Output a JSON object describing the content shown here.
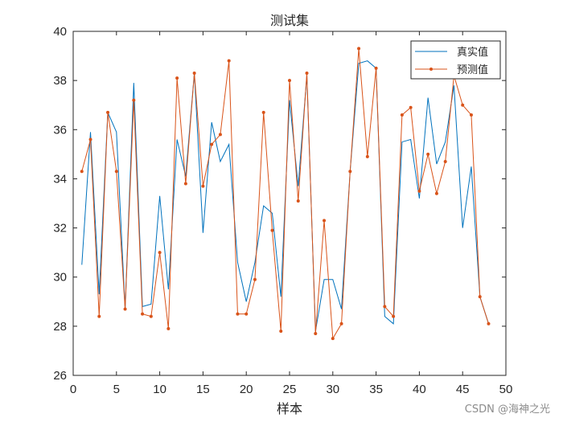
{
  "chart_data": {
    "type": "line",
    "title": "测试集",
    "xlabel": "样本",
    "ylabel": "",
    "xlim": [
      0,
      50
    ],
    "ylim": [
      26,
      40
    ],
    "xticks": [
      0,
      5,
      10,
      15,
      20,
      25,
      30,
      35,
      40,
      45,
      50
    ],
    "yticks": [
      26,
      28,
      30,
      32,
      34,
      36,
      38,
      40
    ],
    "grid": false,
    "legend_position": "top-right",
    "x": [
      1,
      2,
      3,
      4,
      5,
      6,
      7,
      8,
      9,
      10,
      11,
      12,
      13,
      14,
      15,
      16,
      17,
      18,
      19,
      20,
      21,
      22,
      23,
      24,
      25,
      26,
      27,
      28,
      29,
      30,
      31,
      32,
      33,
      34,
      35,
      36,
      37,
      38,
      39,
      40,
      41,
      42,
      43,
      44,
      45,
      46,
      47,
      48
    ],
    "series": [
      {
        "name": "真实值",
        "color": "#0072BD",
        "marker": "none",
        "values": [
          30.5,
          35.9,
          29.3,
          36.7,
          35.9,
          28.7,
          37.9,
          28.8,
          28.9,
          33.3,
          29.5,
          35.6,
          34.1,
          38.3,
          31.8,
          36.3,
          34.7,
          35.4,
          30.6,
          29.0,
          30.6,
          32.9,
          32.6,
          29.2,
          37.2,
          33.7,
          38.2,
          27.8,
          29.9,
          29.9,
          28.7,
          34.3,
          38.7,
          38.8,
          38.5,
          28.4,
          28.1,
          35.5,
          35.6,
          33.2,
          37.3,
          34.6,
          35.5,
          37.8,
          32.0,
          34.5,
          29.2,
          28.1
        ]
      },
      {
        "name": "预测值",
        "color": "#D95319",
        "marker": "dot",
        "values": [
          34.3,
          35.6,
          28.4,
          36.7,
          34.3,
          28.7,
          37.2,
          28.5,
          28.4,
          31.0,
          27.9,
          38.1,
          33.8,
          38.3,
          33.7,
          35.4,
          35.8,
          38.8,
          28.5,
          28.5,
          29.9,
          36.7,
          31.9,
          27.8,
          38.0,
          33.1,
          38.3,
          27.7,
          32.3,
          27.5,
          28.1,
          34.3,
          39.3,
          34.9,
          38.5,
          28.8,
          28.4,
          36.6,
          36.9,
          33.5,
          35.0,
          33.4,
          34.7,
          38.2,
          37.0,
          36.6,
          29.2,
          28.1
        ]
      }
    ]
  },
  "watermark": "CSDN @海神之光"
}
